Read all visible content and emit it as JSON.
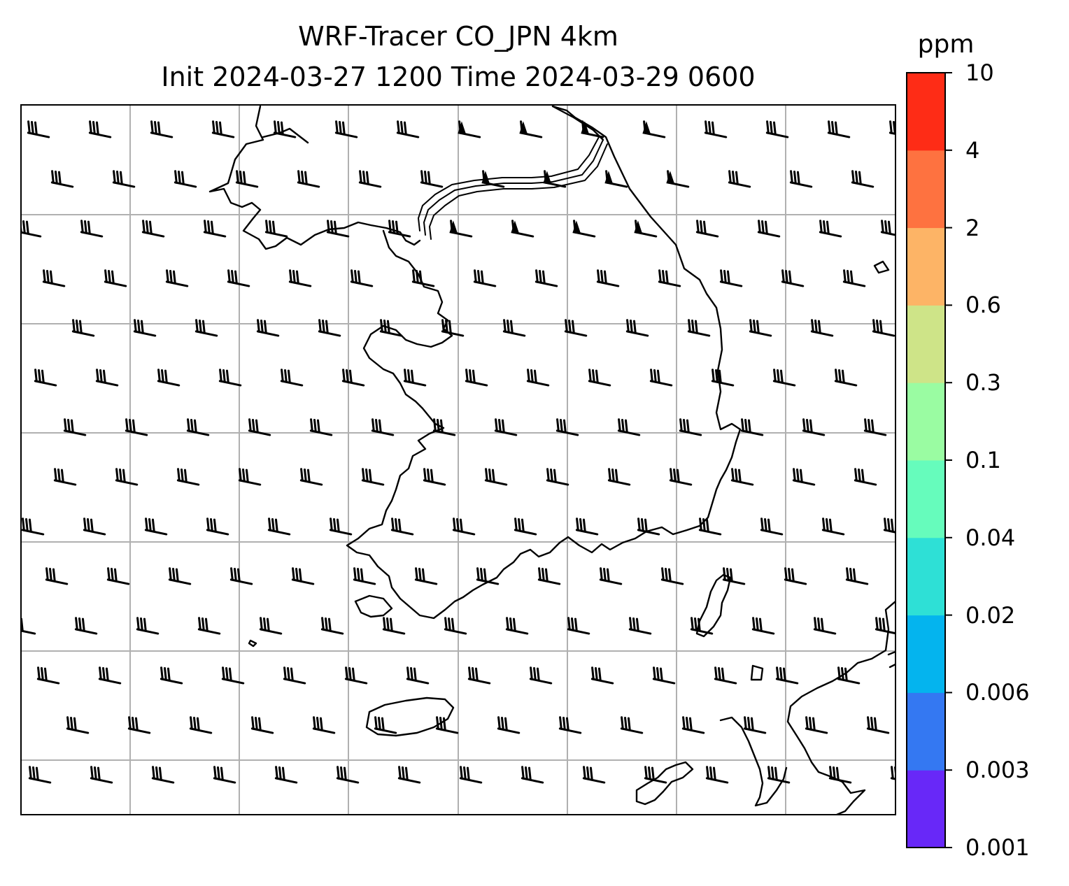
{
  "title": {
    "line1": "WRF-Tracer CO_JPN 4km",
    "line2": "Init 2024-03-27 1200 Time 2024-03-29 0600"
  },
  "map": {
    "gridlines": true,
    "coastline_color": "#000000",
    "gridline_color": "#b0b0b0",
    "wind_barb_color": "#000000"
  },
  "colorbar": {
    "unit": "ppm",
    "ticks": [
      "0.001",
      "0.003",
      "0.006",
      "0.02",
      "0.04",
      "0.1",
      "0.3",
      "0.6",
      "2",
      "4",
      "10"
    ],
    "colors": [
      "#6828f8",
      "#3478f2",
      "#04b4ee",
      "#2ee0d6",
      "#66fcbc",
      "#9afca2",
      "#cee488",
      "#fdb466",
      "#fe7240",
      "#fe2c16"
    ]
  }
}
